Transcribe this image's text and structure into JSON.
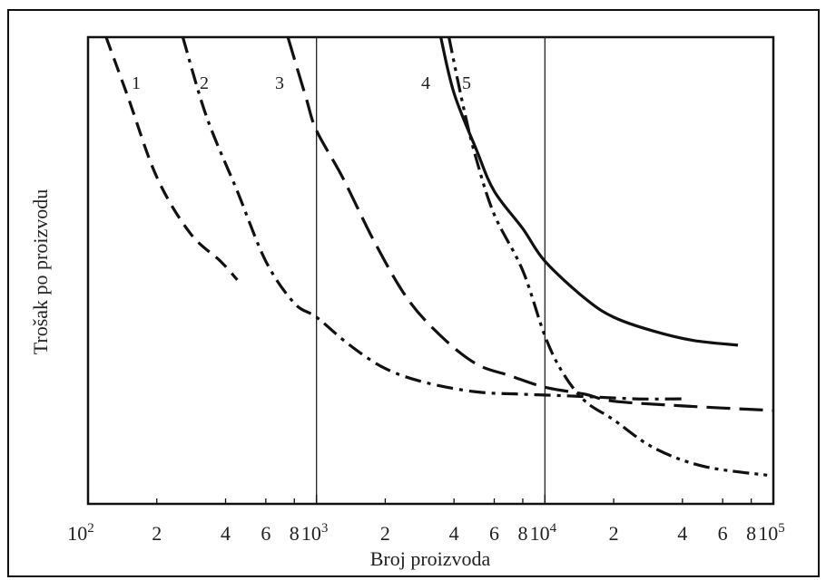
{
  "chart_data": {
    "type": "line",
    "title": "",
    "xlabel": "Broj proizvoda",
    "ylabel": "Trošak po proizvodu",
    "xscale": "log",
    "xlim": [
      100,
      100000
    ],
    "x_major_ticks": [
      {
        "base": "10",
        "exp": "2",
        "value": 100
      },
      {
        "base": "10",
        "exp": "3",
        "value": 1000
      },
      {
        "base": "10",
        "exp": "4",
        "value": 10000
      },
      {
        "base": "10",
        "exp": "5",
        "value": 100000
      }
    ],
    "x_minor_ticks": [
      {
        "label": "2",
        "value": 200
      },
      {
        "label": "4",
        "value": 400
      },
      {
        "label": "6",
        "value": 600
      },
      {
        "label": "8",
        "value": 800
      },
      {
        "label": "2",
        "value": 2000
      },
      {
        "label": "4",
        "value": 4000
      },
      {
        "label": "6",
        "value": 6000
      },
      {
        "label": "8",
        "value": 8000
      },
      {
        "label": "2",
        "value": 20000
      },
      {
        "label": "4",
        "value": 40000
      },
      {
        "label": "6",
        "value": 60000
      },
      {
        "label": "8",
        "value": 80000
      }
    ],
    "ylim": [
      0,
      100
    ],
    "y_ticks_shown": false,
    "vertical_gridlines": [
      1000,
      10000
    ],
    "series": [
      {
        "name": "1",
        "style": "dash",
        "points": [
          [
            120,
            100
          ],
          [
            150,
            87
          ],
          [
            200,
            70
          ],
          [
            280,
            58
          ],
          [
            380,
            52
          ],
          [
            450,
            48
          ]
        ]
      },
      {
        "name": "2",
        "style": "dash-dot",
        "points": [
          [
            260,
            100
          ],
          [
            330,
            83
          ],
          [
            450,
            67
          ],
          [
            600,
            52
          ],
          [
            800,
            43
          ],
          [
            1000,
            40
          ],
          [
            1400,
            34
          ],
          [
            2000,
            29
          ],
          [
            3000,
            26
          ],
          [
            5000,
            24
          ],
          [
            8000,
            23.5
          ],
          [
            15000,
            23
          ],
          [
            25000,
            22.5
          ],
          [
            40000,
            22.5
          ]
        ]
      },
      {
        "name": "3",
        "style": "long-dash",
        "points": [
          [
            750,
            100
          ],
          [
            900,
            87
          ],
          [
            1000,
            80
          ],
          [
            1300,
            70
          ],
          [
            1800,
            56
          ],
          [
            2500,
            44
          ],
          [
            3500,
            36
          ],
          [
            5000,
            30
          ],
          [
            7000,
            27.5
          ],
          [
            10000,
            25
          ],
          [
            15000,
            23.5
          ],
          [
            20000,
            22
          ],
          [
            40000,
            21
          ],
          [
            100000,
            20
          ]
        ]
      },
      {
        "name": "4",
        "style": "solid",
        "points": [
          [
            3500,
            100
          ],
          [
            4000,
            88
          ],
          [
            5000,
            76
          ],
          [
            6000,
            67
          ],
          [
            8000,
            59
          ],
          [
            10000,
            52
          ],
          [
            15000,
            44
          ],
          [
            20000,
            40
          ],
          [
            30000,
            37
          ],
          [
            45000,
            35
          ],
          [
            70000,
            34
          ]
        ]
      },
      {
        "name": "5",
        "style": "dash-dot-dot",
        "points": [
          [
            3800,
            100
          ],
          [
            4400,
            85
          ],
          [
            5000,
            74
          ],
          [
            6000,
            62
          ],
          [
            8000,
            50
          ],
          [
            10000,
            36
          ],
          [
            12000,
            28
          ],
          [
            15000,
            22
          ],
          [
            20000,
            18
          ],
          [
            30000,
            12
          ],
          [
            50000,
            8
          ],
          [
            100000,
            6
          ]
        ]
      }
    ],
    "curve_label_positions": "near top of each curve"
  }
}
